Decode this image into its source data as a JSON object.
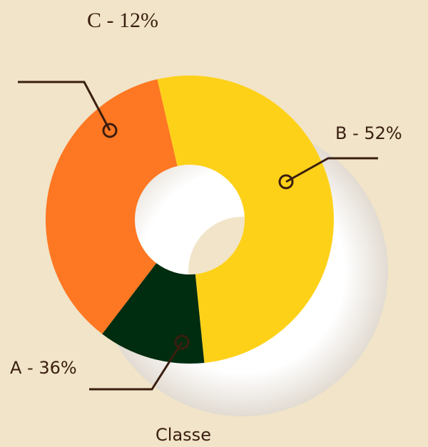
{
  "chart_data": {
    "type": "donut",
    "title": "Classe",
    "values": [
      36,
      52,
      12
    ],
    "value_labels": [
      "A - 36%",
      "B - 52%",
      "C - 12%"
    ],
    "colors": [
      "#fe7722",
      "#fed119",
      "#002c0f"
    ]
  }
}
